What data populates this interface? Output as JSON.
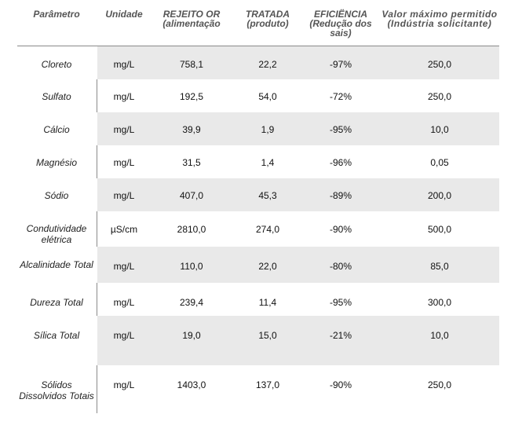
{
  "headers": {
    "parametro": "Parâmetro",
    "unidade": "Unidade",
    "rejeito": "REJEITO OR (alimentação",
    "tratada": "TRATADA (produto)",
    "eficiencia": "EFICIËNCIA (Redução dos sais)",
    "valor_max": "Valor máximo permitido (Indústria solicitante)"
  },
  "rows": [
    {
      "parametro": "Cloreto",
      "unidade": "mg/L",
      "rejeito": "758,1",
      "tratada": "22,2",
      "eficiencia": "-97%",
      "valor_max": "250,0"
    },
    {
      "parametro": "Sulfato",
      "unidade": "mg/L",
      "rejeito": "192,5",
      "tratada": "54,0",
      "eficiencia": "-72%",
      "valor_max": "250,0"
    },
    {
      "parametro": "Cálcio",
      "unidade": "mg/L",
      "rejeito": "39,9",
      "tratada": "1,9",
      "eficiencia": "-95%",
      "valor_max": "10,0"
    },
    {
      "parametro": "Magnésio",
      "unidade": "mg/L",
      "rejeito": "31,5",
      "tratada": "1,4",
      "eficiencia": "-96%",
      "valor_max": "0,05"
    },
    {
      "parametro": "Sódio",
      "unidade": "mg/L",
      "rejeito": "407,0",
      "tratada": "45,3",
      "eficiencia": "-89%",
      "valor_max": "200,0"
    },
    {
      "parametro": "Condutividade elétrica",
      "unidade": "µS/cm",
      "rejeito": "2810,0",
      "tratada": "274,0",
      "eficiencia": "-90%",
      "valor_max": "500,0"
    },
    {
      "parametro": "Alcalinidade Total",
      "unidade": "mg/L",
      "rejeito": "110,0",
      "tratada": "22,0",
      "eficiencia": "-80%",
      "valor_max": "85,0"
    },
    {
      "parametro": "Dureza Total",
      "unidade": "mg/L",
      "rejeito": "239,4",
      "tratada": "11,4",
      "eficiencia": "-95%",
      "valor_max": "300,0"
    },
    {
      "parametro": "Sílica Total",
      "unidade": "mg/L",
      "rejeito": "19,0",
      "tratada": "15,0",
      "eficiencia": "-21%",
      "valor_max": "10,0"
    },
    {
      "parametro": "Sólidos Dissolvidos Totais",
      "unidade": "mg/L",
      "rejeito": "1403,0",
      "tratada": "137,0",
      "eficiencia": "-90%",
      "valor_max": "250,0"
    }
  ]
}
